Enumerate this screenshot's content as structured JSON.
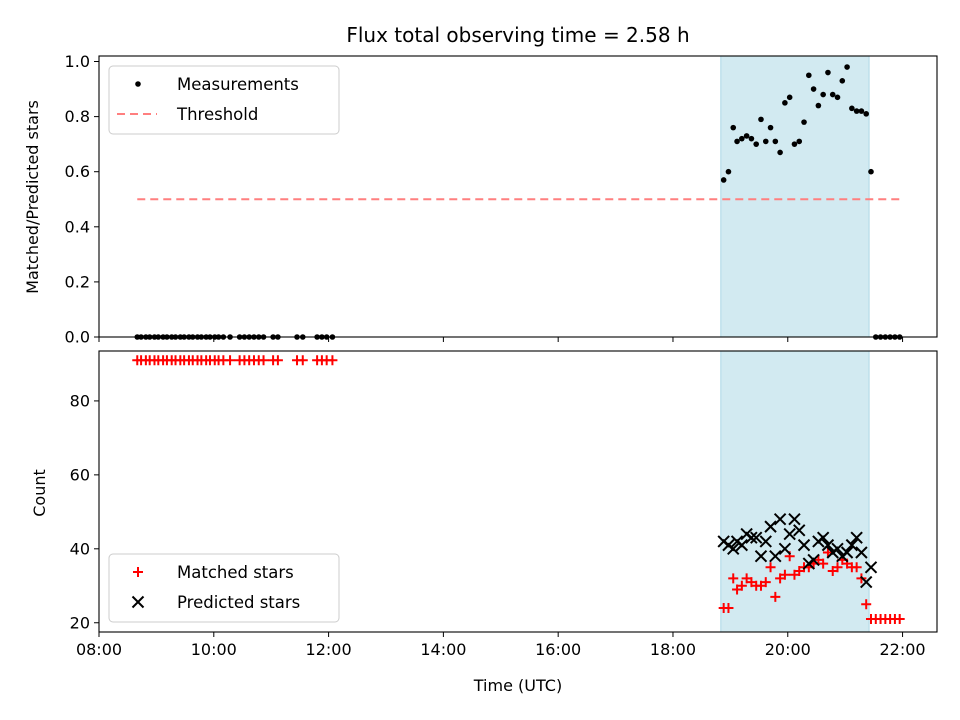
{
  "chart_data": [
    {
      "type": "scatter",
      "title": "Flux total observing time = 2.58 h",
      "xlabel": "",
      "ylabel": "Matched/Predicted stars",
      "xlim": [
        "08:00",
        "22:36"
      ],
      "ylim": [
        0.0,
        1.02
      ],
      "y_ticks": [
        "0.0",
        "0.2",
        "0.4",
        "0.6",
        "0.8",
        "1.0"
      ],
      "x_ticks": [
        "08:00",
        "10:00",
        "12:00",
        "14:00",
        "16:00",
        "18:00",
        "20:00",
        "22:00"
      ],
      "show_x_tick_labels": false,
      "grid": false,
      "legend_position": "upper-left",
      "shaded_span": {
        "from": "18:50",
        "to": "21:25",
        "color": "#add8e6"
      },
      "series": [
        {
          "name": "Measurements",
          "marker": "dot",
          "color": "#000000",
          "points": [
            [
              "08:40",
              0
            ],
            [
              "08:44",
              0
            ],
            [
              "08:49",
              0
            ],
            [
              "08:53",
              0
            ],
            [
              "08:58",
              0
            ],
            [
              "09:02",
              0
            ],
            [
              "09:07",
              0
            ],
            [
              "09:11",
              0
            ],
            [
              "09:16",
              0
            ],
            [
              "09:20",
              0
            ],
            [
              "09:25",
              0
            ],
            [
              "09:29",
              0
            ],
            [
              "09:34",
              0
            ],
            [
              "09:38",
              0
            ],
            [
              "09:43",
              0
            ],
            [
              "09:47",
              0
            ],
            [
              "09:52",
              0
            ],
            [
              "09:56",
              0
            ],
            [
              "10:01",
              0
            ],
            [
              "10:05",
              0
            ],
            [
              "10:10",
              0
            ],
            [
              "10:17",
              0
            ],
            [
              "10:27",
              0
            ],
            [
              "10:32",
              0
            ],
            [
              "10:37",
              0
            ],
            [
              "10:42",
              0
            ],
            [
              "10:47",
              0
            ],
            [
              "10:52",
              0
            ],
            [
              "11:02",
              0
            ],
            [
              "11:07",
              0
            ],
            [
              "11:27",
              0
            ],
            [
              "11:33",
              0
            ],
            [
              "11:48",
              0
            ],
            [
              "11:53",
              0
            ],
            [
              "11:58",
              0
            ],
            [
              "12:04",
              0
            ],
            [
              "18:53",
              0.57
            ],
            [
              "18:58",
              0.6
            ],
            [
              "19:03",
              0.76
            ],
            [
              "19:07",
              0.71
            ],
            [
              "19:12",
              0.72
            ],
            [
              "19:17",
              0.73
            ],
            [
              "19:22",
              0.72
            ],
            [
              "19:27",
              0.7
            ],
            [
              "19:32",
              0.79
            ],
            [
              "19:37",
              0.71
            ],
            [
              "19:42",
              0.76
            ],
            [
              "19:47",
              0.71
            ],
            [
              "19:52",
              0.67
            ],
            [
              "19:57",
              0.85
            ],
            [
              "20:02",
              0.87
            ],
            [
              "20:07",
              0.7
            ],
            [
              "20:12",
              0.71
            ],
            [
              "20:17",
              0.78
            ],
            [
              "20:22",
              0.95
            ],
            [
              "20:27",
              0.9
            ],
            [
              "20:32",
              0.84
            ],
            [
              "20:37",
              0.88
            ],
            [
              "20:42",
              0.96
            ],
            [
              "20:47",
              0.88
            ],
            [
              "20:52",
              0.87
            ],
            [
              "20:57",
              0.93
            ],
            [
              "21:02",
              0.98
            ],
            [
              "21:07",
              0.83
            ],
            [
              "21:12",
              0.82
            ],
            [
              "21:17",
              0.82
            ],
            [
              "21:22",
              0.81
            ],
            [
              "21:27",
              0.6
            ],
            [
              "21:32",
              0
            ],
            [
              "21:37",
              0
            ],
            [
              "21:42",
              0
            ],
            [
              "21:47",
              0
            ],
            [
              "21:52",
              0
            ],
            [
              "21:57",
              0
            ]
          ]
        },
        {
          "name": "Threshold",
          "style": "dashed-line",
          "color": "#ff7f7f",
          "points": [
            [
              "08:40",
              0.5
            ],
            [
              "21:57",
              0.5
            ]
          ]
        }
      ]
    },
    {
      "type": "scatter",
      "title": "",
      "xlabel": "Time (UTC)",
      "ylabel": "Count",
      "xlim": [
        "08:00",
        "22:36"
      ],
      "ylim": [
        17.5,
        93.5
      ],
      "y_ticks": [
        "20",
        "40",
        "60",
        "80"
      ],
      "x_ticks": [
        "08:00",
        "10:00",
        "12:00",
        "14:00",
        "16:00",
        "18:00",
        "20:00",
        "22:00"
      ],
      "show_x_tick_labels": true,
      "grid": false,
      "legend_position": "lower-left",
      "shaded_span": {
        "from": "18:50",
        "to": "21:25",
        "color": "#add8e6"
      },
      "series": [
        {
          "name": "Matched stars",
          "marker": "plus",
          "color": "#ff0000",
          "points": [
            [
              "08:40",
              91
            ],
            [
              "08:44",
              91
            ],
            [
              "08:49",
              91
            ],
            [
              "08:53",
              91
            ],
            [
              "08:58",
              91
            ],
            [
              "09:02",
              91
            ],
            [
              "09:07",
              91
            ],
            [
              "09:11",
              91
            ],
            [
              "09:16",
              91
            ],
            [
              "09:20",
              91
            ],
            [
              "09:25",
              91
            ],
            [
              "09:29",
              91
            ],
            [
              "09:34",
              91
            ],
            [
              "09:38",
              91
            ],
            [
              "09:43",
              91
            ],
            [
              "09:47",
              91
            ],
            [
              "09:52",
              91
            ],
            [
              "09:56",
              91
            ],
            [
              "10:01",
              91
            ],
            [
              "10:05",
              91
            ],
            [
              "10:10",
              91
            ],
            [
              "10:17",
              91
            ],
            [
              "10:27",
              91
            ],
            [
              "10:32",
              91
            ],
            [
              "10:37",
              91
            ],
            [
              "10:42",
              91
            ],
            [
              "10:47",
              91
            ],
            [
              "10:52",
              91
            ],
            [
              "11:02",
              91
            ],
            [
              "11:07",
              91
            ],
            [
              "11:27",
              91
            ],
            [
              "11:33",
              91
            ],
            [
              "11:48",
              91
            ],
            [
              "11:53",
              91
            ],
            [
              "11:58",
              91
            ],
            [
              "12:04",
              91
            ],
            [
              "18:53",
              24
            ],
            [
              "18:58",
              24
            ],
            [
              "19:03",
              32
            ],
            [
              "19:07",
              29
            ],
            [
              "19:12",
              30
            ],
            [
              "19:17",
              32
            ],
            [
              "19:22",
              31
            ],
            [
              "19:27",
              30
            ],
            [
              "19:32",
              30
            ],
            [
              "19:37",
              31
            ],
            [
              "19:42",
              35
            ],
            [
              "19:47",
              27
            ],
            [
              "19:52",
              32
            ],
            [
              "19:57",
              33
            ],
            [
              "20:02",
              38
            ],
            [
              "20:07",
              33
            ],
            [
              "20:12",
              34
            ],
            [
              "20:17",
              35
            ],
            [
              "20:22",
              35
            ],
            [
              "20:27",
              36
            ],
            [
              "20:32",
              37
            ],
            [
              "20:37",
              36
            ],
            [
              "20:42",
              39
            ],
            [
              "20:47",
              34
            ],
            [
              "20:52",
              35
            ],
            [
              "20:57",
              37
            ],
            [
              "21:02",
              36
            ],
            [
              "21:07",
              35
            ],
            [
              "21:12",
              35
            ],
            [
              "21:17",
              32
            ],
            [
              "21:22",
              25
            ],
            [
              "21:27",
              21
            ],
            [
              "21:32",
              21
            ],
            [
              "21:37",
              21
            ],
            [
              "21:42",
              21
            ],
            [
              "21:47",
              21
            ],
            [
              "21:52",
              21
            ],
            [
              "21:57",
              21
            ]
          ]
        },
        {
          "name": "Predicted stars",
          "marker": "x",
          "color": "#000000",
          "points": [
            [
              "18:53",
              42
            ],
            [
              "18:58",
              41
            ],
            [
              "19:03",
              40
            ],
            [
              "19:07",
              42
            ],
            [
              "19:12",
              41
            ],
            [
              "19:17",
              44
            ],
            [
              "19:22",
              43
            ],
            [
              "19:27",
              43
            ],
            [
              "19:32",
              38
            ],
            [
              "19:37",
              42
            ],
            [
              "19:42",
              46
            ],
            [
              "19:47",
              38
            ],
            [
              "19:52",
              48
            ],
            [
              "19:57",
              40
            ],
            [
              "20:02",
              44
            ],
            [
              "20:07",
              48
            ],
            [
              "20:12",
              45
            ],
            [
              "20:17",
              41
            ],
            [
              "20:22",
              36
            ],
            [
              "20:27",
              37
            ],
            [
              "20:32",
              42
            ],
            [
              "20:37",
              43
            ],
            [
              "20:42",
              41
            ],
            [
              "20:47",
              39
            ],
            [
              "20:52",
              40
            ],
            [
              "20:57",
              38
            ],
            [
              "21:02",
              39
            ],
            [
              "21:07",
              41
            ],
            [
              "21:12",
              43
            ],
            [
              "21:17",
              39
            ],
            [
              "21:22",
              31
            ],
            [
              "21:27",
              35
            ]
          ]
        }
      ]
    }
  ]
}
